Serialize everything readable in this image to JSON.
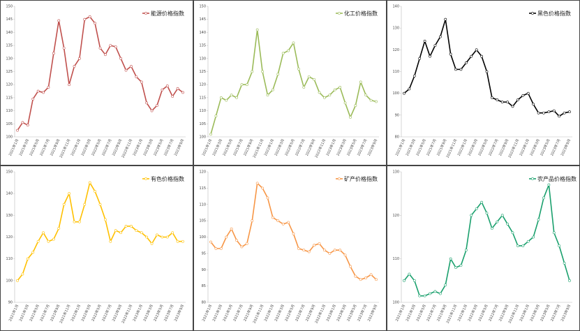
{
  "chart_data": [
    {
      "type": "line",
      "categories": [
        "2021年1月",
        null,
        "2021年3月",
        null,
        "2021年5月",
        null,
        "2021年7月",
        null,
        "2021年9月",
        null,
        "2021年11月",
        null,
        "2022年1月",
        null,
        "2022年3月",
        null,
        "2022年5月",
        null,
        "2022年7月",
        null,
        "2022年9月",
        null,
        "2022年11月",
        null,
        "2023年1月",
        null,
        "2023年3月",
        null,
        "2023年5月",
        null,
        "2023年7月",
        null,
        "2023年9月"
      ],
      "series": [
        {
          "name": "能源价格指数",
          "color": "#c0504d",
          "values": [
            102.5,
            105.5,
            104.5,
            114.5,
            117.5,
            117,
            119,
            132,
            144.5,
            134,
            120,
            127,
            130,
            145,
            146,
            143.5,
            134,
            131.5,
            135,
            134.5,
            130,
            125.5,
            127,
            123,
            121,
            113,
            110,
            112,
            118,
            119.5,
            115.5,
            118.5,
            117
          ]
        }
      ],
      "ylim": [
        100,
        150
      ],
      "yticks": [
        100,
        105,
        110,
        115,
        120,
        125,
        130,
        135,
        140,
        145,
        150
      ]
    },
    {
      "type": "line",
      "categories": [
        "2021年1月",
        null,
        "2021年3月",
        null,
        "2021年5月",
        null,
        "2021年7月",
        null,
        "2021年9月",
        null,
        "2021年11月",
        null,
        "2022年1月",
        null,
        "2022年3月",
        null,
        "2022年5月",
        null,
        "2022年7月",
        null,
        "2022年9月",
        null,
        "2022年11月",
        null,
        "2023年1月",
        null,
        "2023年3月",
        null,
        "2023年5月",
        null,
        "2023年7月",
        null,
        "2023年9月"
      ],
      "series": [
        {
          "name": "化工价格指数",
          "color": "#9bbb59",
          "values": [
            101,
            108,
            115,
            114,
            116,
            115,
            120,
            120,
            125,
            141,
            125,
            116,
            118,
            124,
            132,
            133,
            136,
            126,
            119,
            123,
            122,
            117,
            115,
            116,
            118,
            119,
            113,
            107.5,
            112,
            121,
            116,
            114,
            113.5
          ]
        }
      ],
      "ylim": [
        100,
        150
      ],
      "yticks": [
        100,
        105,
        110,
        115,
        120,
        125,
        130,
        135,
        140,
        145,
        150
      ]
    },
    {
      "type": "line",
      "categories": [
        "2021年1月",
        null,
        "2021年3月",
        null,
        "2021年5月",
        null,
        "2021年7月",
        null,
        "2021年9月",
        null,
        "2021年11月",
        null,
        "2022年1月",
        null,
        "2022年3月",
        null,
        "2022年5月",
        null,
        "2022年7月",
        null,
        "2022年9月",
        null,
        "2022年11月",
        null,
        "2023年1月",
        null,
        "2023年3月",
        null,
        "2023年5月",
        null,
        "2023年7月",
        null,
        "2023年9月"
      ],
      "series": [
        {
          "name": "黑色价格指数",
          "color": "#000000",
          "values": [
            100,
            102,
            108,
            116,
            124,
            117,
            122,
            126,
            134,
            118,
            111,
            111,
            114,
            117,
            120,
            117,
            110,
            98,
            97,
            96,
            96,
            94,
            97,
            99,
            100,
            95,
            91,
            91,
            91.5,
            92,
            89.5,
            91,
            91.5
          ]
        }
      ],
      "ylim": [
        80,
        140
      ],
      "yticks": [
        80,
        90,
        100,
        110,
        120,
        130,
        140
      ]
    },
    {
      "type": "line",
      "categories": [
        "2021年1月",
        null,
        "2021年3月",
        null,
        "2021年5月",
        null,
        "2021年7月",
        null,
        "2021年9月",
        null,
        "2021年11月",
        null,
        "2022年1月",
        null,
        "2022年3月",
        null,
        "2022年5月",
        null,
        "2022年7月",
        null,
        "2022年9月",
        null,
        "2022年11月",
        null,
        "2023年1月",
        null,
        "2023年3月",
        null,
        "2023年5月",
        null,
        "2023年7月",
        null,
        "2023年9月"
      ],
      "series": [
        {
          "name": "有色价格指数",
          "color": "#ffc000",
          "values": [
            100,
            103,
            110,
            113,
            118,
            122,
            118,
            119,
            124,
            135,
            140,
            127,
            127,
            135,
            145,
            141,
            135,
            128,
            118,
            123,
            122,
            125,
            125,
            123,
            122,
            120,
            117,
            121,
            120,
            120,
            122,
            118,
            118
          ]
        }
      ],
      "ylim": [
        90,
        150
      ],
      "yticks": [
        90,
        100,
        110,
        120,
        130,
        140,
        150
      ]
    },
    {
      "type": "line",
      "categories": [
        "2021年1月",
        null,
        "2021年3月",
        null,
        "2021年5月",
        null,
        "2021年7月",
        null,
        "2021年9月",
        null,
        "2021年11月",
        null,
        "2022年1月",
        null,
        "2022年3月",
        null,
        "2022年5月",
        null,
        "2022年7月",
        null,
        "2022年9月",
        null,
        "2022年11月",
        null,
        "2023年1月",
        null,
        "2023年3月",
        null,
        "2023年5月",
        null,
        "2023年7月",
        null,
        "2023年9月"
      ],
      "series": [
        {
          "name": "矿产价格指数",
          "color": "#f79646",
          "values": [
            98.5,
            96.5,
            96.5,
            100,
            102.5,
            99,
            97,
            98,
            105,
            116.5,
            115,
            112,
            106,
            105,
            104,
            104.5,
            101,
            96.5,
            96,
            95.5,
            97.5,
            98,
            96,
            95,
            96,
            96,
            94.5,
            91,
            88,
            87,
            87.5,
            88.5,
            87
          ]
        }
      ],
      "ylim": [
        80,
        120
      ],
      "yticks": [
        80,
        85,
        90,
        95,
        100,
        105,
        110,
        115,
        120
      ]
    },
    {
      "type": "line",
      "categories": [
        "2021年1月",
        null,
        "2021年3月",
        null,
        "2021年5月",
        null,
        "2021年7月",
        null,
        "2021年9月",
        null,
        "2021年11月",
        null,
        "2022年1月",
        null,
        "2022年3月",
        null,
        "2022年5月",
        null,
        "2022年7月",
        null,
        "2022年9月",
        null,
        "2022年11月",
        null,
        "2023年1月",
        null,
        "2023年3月",
        null,
        "2023年5月",
        null,
        "2023年7月",
        null,
        "2023年9月"
      ],
      "series": [
        {
          "name": "农产品价格指数",
          "color": "#1aa06d",
          "values": [
            105,
            106.5,
            105,
            101.5,
            101.5,
            102,
            102.5,
            102,
            104,
            110,
            108,
            108.5,
            112,
            120,
            121.5,
            123,
            120.5,
            117,
            118.5,
            120,
            118,
            116,
            113,
            113,
            114,
            115,
            119,
            124,
            127,
            116,
            113,
            109,
            105
          ]
        }
      ],
      "ylim": [
        100,
        130
      ],
      "yticks": [
        100,
        110,
        120,
        130
      ]
    }
  ]
}
